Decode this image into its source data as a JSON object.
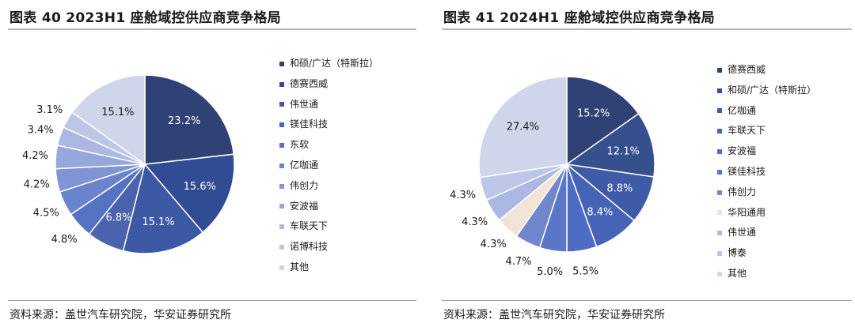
{
  "left": {
    "title": "图表 40 2023H1 座舱域控供应商竞争格局",
    "source": "资料来源：盖世汽车研究院，华安证券研究所"
  },
  "right": {
    "title": "图表 41 2024H1 座舱域控供应商竞争格局",
    "source": "资料来源：盖世汽车研究院，华安证券研究所"
  },
  "chart_data": [
    {
      "type": "pie",
      "title": "图表 40 2023H1 座舱域控供应商竞争格局",
      "labels": [
        "和硕/广达（特斯拉）",
        "德赛西威",
        "伟世通",
        "镁佳科技",
        "东软",
        "亿咖通",
        "伟创力",
        "安波福",
        "车联天下",
        "诺博科技",
        "其他"
      ],
      "values": [
        23.2,
        15.6,
        15.1,
        6.8,
        4.8,
        4.5,
        4.2,
        4.2,
        3.4,
        3.1,
        15.1
      ],
      "value_labels": [
        "23.2%",
        "15.6%",
        "15.1%",
        "6.8%",
        "4.8%",
        "4.5%",
        "4.2%",
        "4.2%",
        "3.4%",
        "3.1%",
        "15.1%"
      ],
      "colors": [
        "#2f4175",
        "#314c92",
        "#3d58a4",
        "#4a63ac",
        "#5672c2",
        "#6a83cd",
        "#7e94d4",
        "#96a8db",
        "#aab8e2",
        "#bcc7e8",
        "#cfd5ea"
      ],
      "legend_position": "right"
    },
    {
      "type": "pie",
      "title": "图表 41 2024H1 座舱域控供应商竞争格局",
      "labels": [
        "德赛西威",
        "和硕/广达（特斯拉）",
        "亿咖通",
        "车联天下",
        "安波福",
        "镁佳科技",
        "伟创力",
        "华阳通用",
        "伟世通",
        "博泰",
        "其他"
      ],
      "values": [
        15.2,
        12.1,
        8.8,
        8.4,
        5.5,
        5.0,
        4.7,
        4.3,
        4.3,
        4.3,
        27.4
      ],
      "value_labels": [
        "15.2%",
        "12.1%",
        "8.8%",
        "8.4%",
        "5.5%",
        "5.0%",
        "4.7%",
        "4.3%",
        "4.3%",
        "4.3%",
        "27.4%"
      ],
      "colors": [
        "#2f4175",
        "#36508e",
        "#3f5aa6",
        "#4763b5",
        "#4f6cc4",
        "#5a76c6",
        "#7186cb",
        "#f1e3d6",
        "#aab8e2",
        "#bcc7e8",
        "#cfd5ea"
      ],
      "legend_position": "right"
    }
  ]
}
